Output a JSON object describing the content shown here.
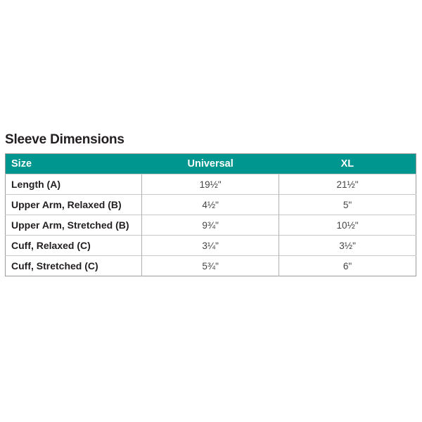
{
  "title": "Sleeve Dimensions",
  "header_color": "#009690",
  "columns": [
    "Size",
    "Universal",
    "XL"
  ],
  "rows": [
    {
      "label": "Length (A)",
      "universal": "19½\"",
      "xl": "21½\""
    },
    {
      "label": "Upper Arm, Relaxed (B)",
      "universal": "4½\"",
      "xl": "5\""
    },
    {
      "label": "Upper Arm, Stretched (B)",
      "universal": "9¾\"",
      "xl": "10½\""
    },
    {
      "label": "Cuff, Relaxed (C)",
      "universal": "3¼\"",
      "xl": "3½\""
    },
    {
      "label": "Cuff, Stretched (C)",
      "universal": "5¾\"",
      "xl": "6\""
    }
  ]
}
